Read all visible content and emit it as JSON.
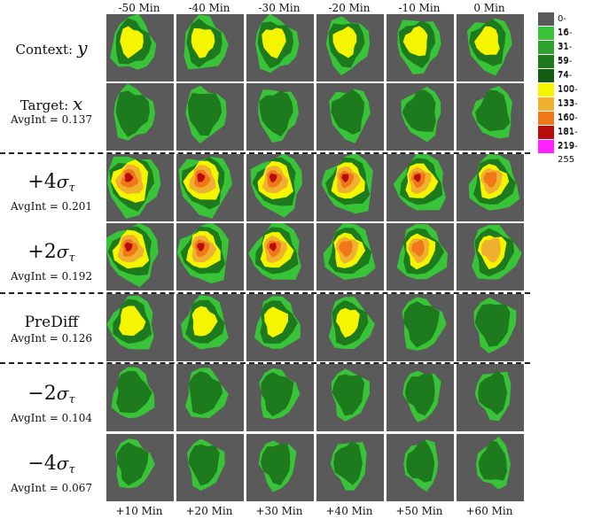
{
  "top_labels": [
    "-50 Min",
    "-40 Min",
    "-30 Min",
    "-20 Min",
    "-10 Min",
    "0 Min"
  ],
  "bottom_labels": [
    "+10 Min",
    "+20 Min",
    "+30 Min",
    "+40 Min",
    "+50 Min",
    "+60 Min"
  ],
  "rows": [
    {
      "id": "context",
      "label": "Context:",
      "symbol": "y",
      "sigma": "",
      "avgint": "",
      "intensity": 0.55,
      "has_tiles": true
    },
    {
      "id": "target",
      "label": "Target:",
      "symbol": "x",
      "sigma": "",
      "avgint": "AvgInt = 0.137",
      "intensity": 0.45
    },
    {
      "id": "plus4",
      "label": "+4",
      "symbol": "σ",
      "sigma": "τ",
      "avgint": "AvgInt = 0.201",
      "intensity": 1.0
    },
    {
      "id": "plus2",
      "label": "+2",
      "symbol": "σ",
      "sigma": "τ",
      "avgint": "AvgInt = 0.192",
      "intensity": 0.92
    },
    {
      "id": "prediff",
      "label": "PreDiff",
      "symbol": "",
      "sigma": "",
      "avgint": "AvgInt = 0.126",
      "intensity": 0.6
    },
    {
      "id": "minus2",
      "label": "−2",
      "symbol": "σ",
      "sigma": "τ",
      "avgint": "AvgInt = 0.104",
      "intensity": 0.42
    },
    {
      "id": "minus4",
      "label": "−4",
      "symbol": "σ",
      "sigma": "τ",
      "avgint": "AvgInt = 0.067",
      "intensity": 0.25
    }
  ],
  "legend": [
    {
      "range": "0-16",
      "color": "#5a5a5a"
    },
    {
      "range": "16-31",
      "color": "#39c339"
    },
    {
      "range": "31-59",
      "color": "#2ea12e"
    },
    {
      "range": "59-74",
      "color": "#1d7a1d"
    },
    {
      "range": "74-100",
      "color": "#115c11"
    },
    {
      "range": "100-133",
      "color": "#f5f500"
    },
    {
      "range": "133-160",
      "color": "#f0b030"
    },
    {
      "range": "160-181",
      "color": "#f07818"
    },
    {
      "range": "181-219",
      "color": "#b80c0c"
    },
    {
      "range": "219-255",
      "color": "#ff22ff"
    }
  ]
}
